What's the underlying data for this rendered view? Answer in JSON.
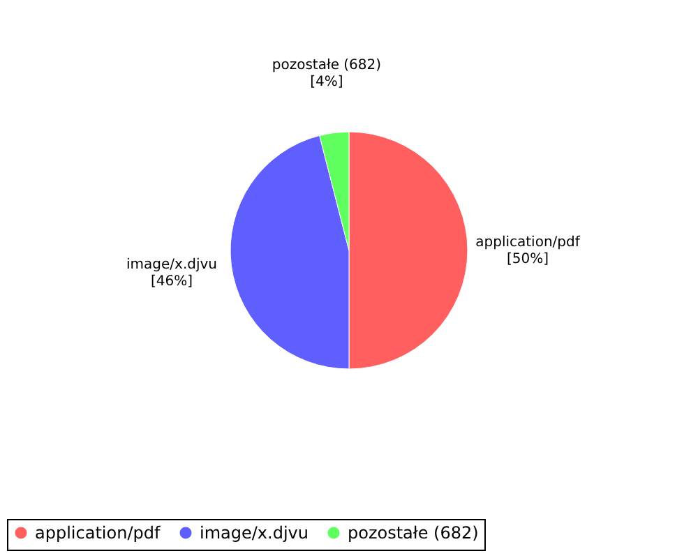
{
  "chart_data": {
    "type": "pie",
    "categories": [
      "application/pdf",
      "image/x.djvu",
      "pozostałe (682)"
    ],
    "values": [
      50,
      46,
      4
    ],
    "colors": [
      "#ff5f5f",
      "#5f5fff",
      "#5fff5f"
    ],
    "value_labels": [
      "[50%]",
      "[46%]",
      "[4%]"
    ],
    "legend": "bottom"
  }
}
